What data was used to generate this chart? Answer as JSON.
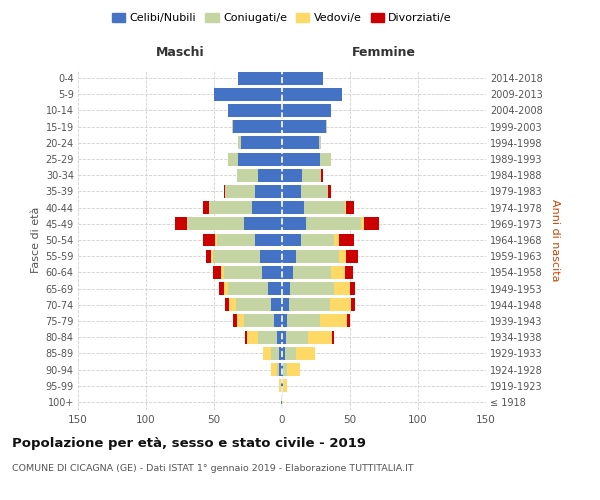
{
  "age_groups": [
    "100+",
    "95-99",
    "90-94",
    "85-89",
    "80-84",
    "75-79",
    "70-74",
    "65-69",
    "60-64",
    "55-59",
    "50-54",
    "45-49",
    "40-44",
    "35-39",
    "30-34",
    "25-29",
    "20-24",
    "15-19",
    "10-14",
    "5-9",
    "0-4"
  ],
  "birth_years": [
    "≤ 1918",
    "1919-1923",
    "1924-1928",
    "1929-1933",
    "1934-1938",
    "1939-1943",
    "1944-1948",
    "1949-1953",
    "1954-1958",
    "1959-1963",
    "1964-1968",
    "1969-1973",
    "1974-1978",
    "1979-1983",
    "1984-1988",
    "1989-1993",
    "1994-1998",
    "1999-2003",
    "2004-2008",
    "2009-2013",
    "2014-2018"
  ],
  "colors": {
    "celibe": "#4472c4",
    "coniugato": "#c5d4a3",
    "vedovo": "#ffd966",
    "divorziato": "#cc0000"
  },
  "maschi": {
    "celibe": [
      1,
      1,
      2,
      2,
      4,
      6,
      8,
      10,
      15,
      16,
      20,
      28,
      22,
      20,
      18,
      32,
      30,
      36,
      40,
      50,
      32
    ],
    "coniugato": [
      0,
      0,
      2,
      6,
      14,
      22,
      26,
      30,
      28,
      35,
      28,
      42,
      32,
      22,
      15,
      8,
      2,
      1,
      0,
      0,
      0
    ],
    "vedovo": [
      0,
      1,
      4,
      6,
      8,
      5,
      5,
      3,
      2,
      1,
      1,
      0,
      0,
      0,
      0,
      0,
      0,
      0,
      0,
      0,
      0
    ],
    "divorziato": [
      0,
      0,
      0,
      0,
      1,
      3,
      3,
      3,
      6,
      4,
      9,
      9,
      4,
      1,
      0,
      0,
      0,
      0,
      0,
      0,
      0
    ]
  },
  "femmine": {
    "nubile": [
      0,
      1,
      1,
      2,
      3,
      4,
      5,
      6,
      8,
      10,
      14,
      18,
      16,
      14,
      15,
      28,
      27,
      32,
      36,
      44,
      30
    ],
    "coniugata": [
      0,
      0,
      3,
      8,
      16,
      24,
      30,
      32,
      28,
      32,
      24,
      40,
      30,
      20,
      14,
      8,
      2,
      1,
      0,
      0,
      0
    ],
    "vedova": [
      1,
      3,
      9,
      14,
      18,
      20,
      16,
      12,
      10,
      5,
      4,
      2,
      1,
      0,
      0,
      0,
      0,
      0,
      0,
      0,
      0
    ],
    "divorziata": [
      0,
      0,
      0,
      0,
      1,
      2,
      3,
      4,
      6,
      9,
      11,
      11,
      6,
      2,
      1,
      0,
      0,
      0,
      0,
      0,
      0
    ]
  },
  "title": "Popolazione per età, sesso e stato civile - 2019",
  "subtitle": "COMUNE DI CICAGNA (GE) - Dati ISTAT 1° gennaio 2019 - Elaborazione TUTTITALIA.IT",
  "xlabel_left": "Maschi",
  "xlabel_right": "Femmine",
  "ylabel_left": "Fasce di età",
  "ylabel_right": "Anni di nascita",
  "xlim": 150,
  "legend_labels": [
    "Celibi/Nubili",
    "Coniugati/e",
    "Vedovi/e",
    "Divorziati/e"
  ],
  "bg_color": "#ffffff",
  "grid_color": "#d0d0d0"
}
